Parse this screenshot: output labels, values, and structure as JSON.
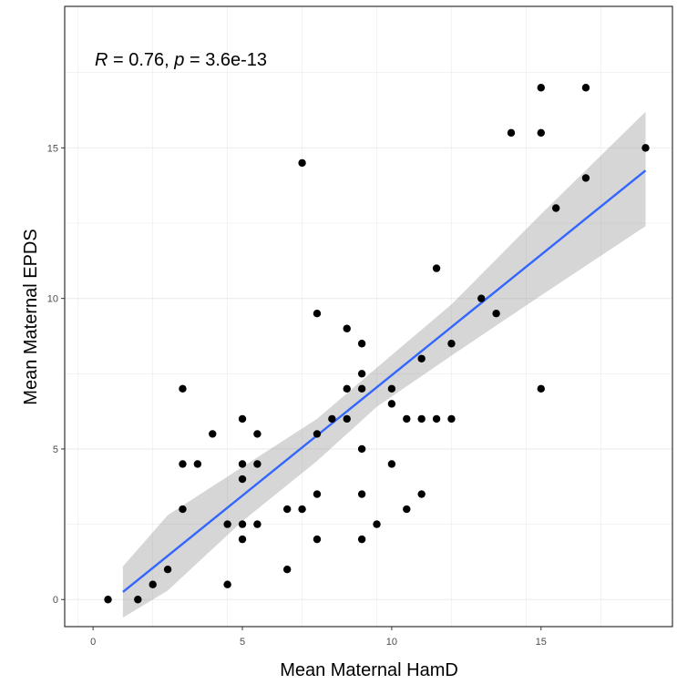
{
  "chart_data": {
    "type": "scatter",
    "xlabel": "Mean Maternal HamD",
    "ylabel": "Mean Maternal EPDS",
    "xlim": [
      -0.95,
      19.4
    ],
    "ylim": [
      -0.9,
      19.7
    ],
    "x_ticks": [
      0,
      5,
      10,
      15
    ],
    "y_ticks": [
      0,
      5,
      10,
      15
    ],
    "grid": true,
    "legend": "none",
    "annotation": {
      "r_label": "R",
      "r_value": " = 0.76, ",
      "p_label": "p",
      "p_value": " = 3.6e-13"
    },
    "points": [
      {
        "x": 0.5,
        "y": 0
      },
      {
        "x": 1.5,
        "y": 0
      },
      {
        "x": 2,
        "y": 0.5
      },
      {
        "x": 2.5,
        "y": 1
      },
      {
        "x": 3,
        "y": 7
      },
      {
        "x": 3,
        "y": 4.5
      },
      {
        "x": 3,
        "y": 3
      },
      {
        "x": 3.5,
        "y": 4.5
      },
      {
        "x": 4,
        "y": 5.5
      },
      {
        "x": 4.5,
        "y": 2.5
      },
      {
        "x": 4.5,
        "y": 0.5
      },
      {
        "x": 5,
        "y": 6
      },
      {
        "x": 5,
        "y": 4.5
      },
      {
        "x": 5,
        "y": 4
      },
      {
        "x": 5,
        "y": 2.5
      },
      {
        "x": 5,
        "y": 2
      },
      {
        "x": 5.5,
        "y": 5.5
      },
      {
        "x": 5.5,
        "y": 4.5
      },
      {
        "x": 5.5,
        "y": 2.5
      },
      {
        "x": 6.5,
        "y": 3
      },
      {
        "x": 6.5,
        "y": 1
      },
      {
        "x": 7,
        "y": 14.5
      },
      {
        "x": 7,
        "y": 3
      },
      {
        "x": 7.5,
        "y": 9.5
      },
      {
        "x": 7.5,
        "y": 5.5
      },
      {
        "x": 7.5,
        "y": 3.5
      },
      {
        "x": 7.5,
        "y": 2
      },
      {
        "x": 8,
        "y": 6
      },
      {
        "x": 8.5,
        "y": 9
      },
      {
        "x": 8.5,
        "y": 7
      },
      {
        "x": 8.5,
        "y": 6
      },
      {
        "x": 9,
        "y": 8.5
      },
      {
        "x": 9,
        "y": 7.5
      },
      {
        "x": 9,
        "y": 7
      },
      {
        "x": 9,
        "y": 5
      },
      {
        "x": 9,
        "y": 3.5
      },
      {
        "x": 9,
        "y": 2
      },
      {
        "x": 9.5,
        "y": 2.5
      },
      {
        "x": 10,
        "y": 7
      },
      {
        "x": 10,
        "y": 6.5
      },
      {
        "x": 10,
        "y": 4.5
      },
      {
        "x": 10.5,
        "y": 6
      },
      {
        "x": 10.5,
        "y": 3
      },
      {
        "x": 11,
        "y": 8
      },
      {
        "x": 11,
        "y": 6
      },
      {
        "x": 11,
        "y": 3.5
      },
      {
        "x": 11.5,
        "y": 11
      },
      {
        "x": 11.5,
        "y": 6
      },
      {
        "x": 12,
        "y": 8.5
      },
      {
        "x": 12,
        "y": 6
      },
      {
        "x": 13,
        "y": 10
      },
      {
        "x": 13.5,
        "y": 9.5
      },
      {
        "x": 14,
        "y": 15.5
      },
      {
        "x": 15,
        "y": 17
      },
      {
        "x": 15,
        "y": 15.5
      },
      {
        "x": 15,
        "y": 7
      },
      {
        "x": 15.5,
        "y": 13
      },
      {
        "x": 16.5,
        "y": 17
      },
      {
        "x": 16.5,
        "y": 14
      },
      {
        "x": 18.5,
        "y": 15
      }
    ],
    "regression": {
      "x": [
        1,
        18.5
      ],
      "y": [
        0.25,
        14.25
      ],
      "ci_x": [
        1,
        2.5,
        5,
        7.5,
        9.5,
        12,
        15,
        18.5
      ],
      "ci_lower": [
        -0.6,
        0.3,
        2.6,
        4.6,
        6.4,
        8.1,
        10.1,
        12.4
      ],
      "ci_upper": [
        1.1,
        2.8,
        4.4,
        6.0,
        7.7,
        9.8,
        12.8,
        16.2
      ]
    },
    "colors": {
      "panel_border": "#333333",
      "grid": "#ebebeb",
      "points": "#000000",
      "fit_line": "#3366ff",
      "ci_band": "#999999"
    }
  }
}
